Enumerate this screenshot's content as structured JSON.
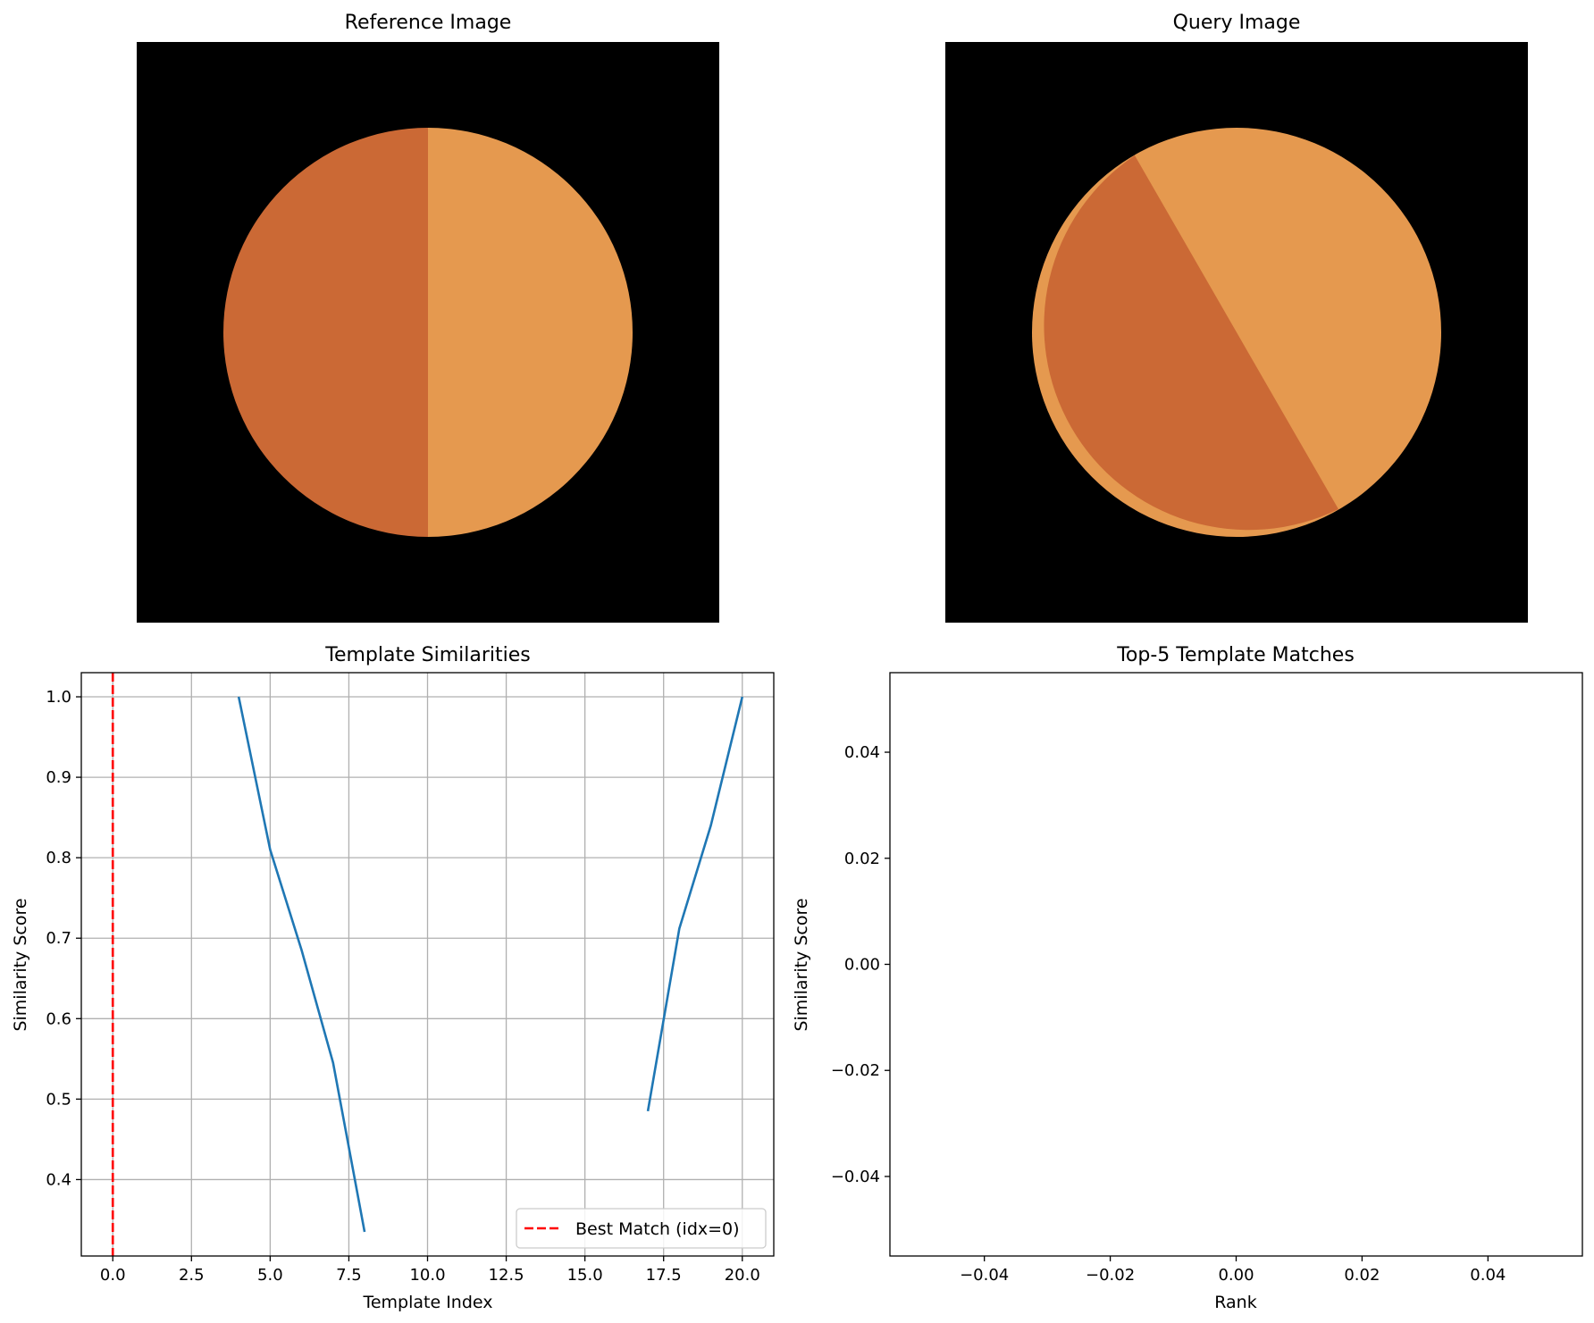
{
  "chart_data": [
    {
      "type": "image",
      "title": "Reference Image",
      "description_colors": {
        "background": "#000000",
        "left_half": "#cb6935",
        "right_half": "#e5994f"
      },
      "split_angle_deg": 90
    },
    {
      "type": "image",
      "title": "Query Image",
      "description_colors": {
        "background": "#000000",
        "lower_left": "#cb6935",
        "upper_right": "#e5994f"
      },
      "split_angle_deg": 60
    },
    {
      "type": "line",
      "title": "Template Similarities",
      "xlabel": "Template Index",
      "ylabel": "Similarity Score",
      "xlim": [
        -1,
        21
      ],
      "ylim": [
        0.305,
        1.03
      ],
      "xticks": [
        0.0,
        2.5,
        5.0,
        7.5,
        10.0,
        12.5,
        15.0,
        17.5,
        20.0
      ],
      "xtick_labels": [
        "0.0",
        "2.5",
        "5.0",
        "7.5",
        "10.0",
        "12.5",
        "15.0",
        "17.5",
        "20.0"
      ],
      "yticks": [
        0.4,
        0.5,
        0.6,
        0.7,
        0.8,
        0.9,
        1.0
      ],
      "ytick_labels": [
        "0.4",
        "0.5",
        "0.6",
        "0.7",
        "0.8",
        "0.9",
        "1.0"
      ],
      "grid": true,
      "series": [
        {
          "color": "#1f77b4",
          "segments": [
            {
              "x": [
                4,
                5,
                6,
                7,
                8
              ],
              "y": [
                1.0,
                0.81,
                0.685,
                0.545,
                0.335
              ]
            },
            {
              "x": [
                17,
                18,
                19,
                20
              ],
              "y": [
                0.485,
                0.712,
                0.84,
                1.0
              ]
            }
          ]
        }
      ],
      "vline": {
        "x": 0,
        "color": "#ff0000",
        "style": "dashed",
        "label": "Best Match (idx=0)"
      },
      "legend": {
        "location": "lower-right",
        "entries": [
          "Best Match (idx=0)"
        ]
      }
    },
    {
      "type": "bar",
      "title": "Top-5 Template Matches",
      "xlabel": "Rank",
      "ylabel": "Similarity Score",
      "xlim": [
        -0.055,
        0.055
      ],
      "ylim": [
        -0.055,
        0.055
      ],
      "xticks": [
        -0.04,
        -0.02,
        0.0,
        0.02,
        0.04
      ],
      "xtick_labels": [
        "−0.04",
        "−0.02",
        "0.00",
        "0.02",
        "0.04"
      ],
      "yticks": [
        -0.04,
        -0.02,
        0.0,
        0.02,
        0.04
      ],
      "ytick_labels": [
        "−0.04",
        "−0.02",
        "0.00",
        "0.02",
        "0.04"
      ],
      "grid": false,
      "categories": [],
      "values": []
    }
  ]
}
